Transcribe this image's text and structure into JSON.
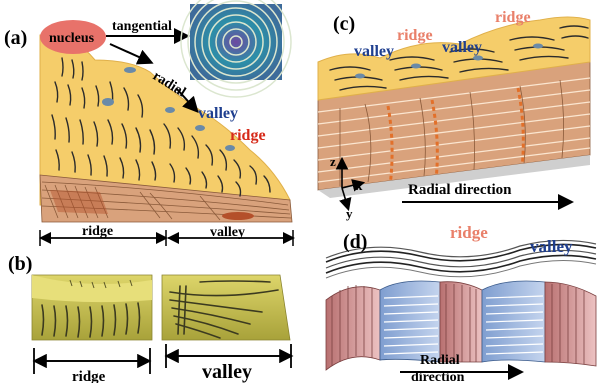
{
  "panels": {
    "a": {
      "label": "(a)",
      "nucleus": "nucleus",
      "tangential": "tangential",
      "radial": "radial",
      "valley": "valley",
      "ridge": "ridge",
      "bottom_ridge": "ridge",
      "bottom_valley": "valley"
    },
    "b": {
      "label": "(b)",
      "ridge": "ridge",
      "valley": "valley"
    },
    "c": {
      "label": "(c)",
      "valley_1": "valley",
      "ridge_1": "ridge",
      "valley_2": "valley",
      "ridge_2": "ridge",
      "axis_z": "z",
      "axis_x": "x",
      "axis_y": "y",
      "radial_direction": "Radial direction"
    },
    "d": {
      "label": "(d)",
      "ridge": "ridge",
      "valley": "valley",
      "radial_line1": "Radial",
      "radial_line2": "direction"
    }
  },
  "colors": {
    "film_yellow": "#f5cd6a",
    "lamella_tan": "#d9a27c",
    "lamella_dark": "#8a5a3a",
    "ridge_red": "#d62a1a",
    "ridge_orange": "#e9806a",
    "valley_blue": "#1f3f8f",
    "nucleus_pink": "#e8726a",
    "olive": "#c9c455",
    "blue_lamella": "#9fb8de",
    "pink_lamella": "#d7a0a0"
  }
}
